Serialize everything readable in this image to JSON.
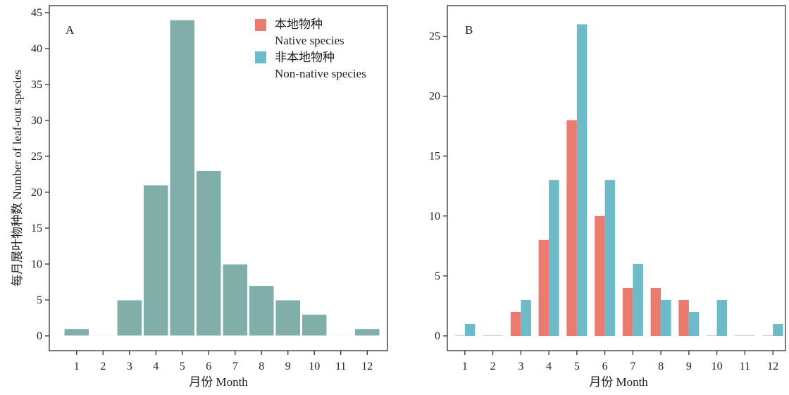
{
  "colors": {
    "single": "#7fafa8",
    "native": "#e97b6f",
    "nonnative": "#6dbac8",
    "axis": "#222222",
    "bar_edge": "#ffffff"
  },
  "chart_data": [
    {
      "type": "bar",
      "panel_label": "A",
      "categories": [
        "1",
        "2",
        "3",
        "4",
        "5",
        "6",
        "7",
        "8",
        "9",
        "10",
        "11",
        "12"
      ],
      "values": [
        1,
        0,
        5,
        21,
        44,
        23,
        10,
        7,
        5,
        3,
        0,
        1
      ],
      "ylim": [
        0,
        45
      ],
      "yticks": [
        0,
        5,
        10,
        15,
        20,
        25,
        30,
        35,
        40,
        45
      ],
      "xlabel": "月份 Month",
      "ylabel": "每月展叶物种数 Number of leaf-out species",
      "grid": false,
      "legend": {
        "position": "top-right",
        "entries": [
          {
            "label_zh": "本地物种",
            "label_en": "Native species",
            "color_key": "native"
          },
          {
            "label_zh": "非本地物种",
            "label_en": "Non-native species",
            "color_key": "nonnative"
          }
        ]
      }
    },
    {
      "type": "bar",
      "panel_label": "B",
      "categories": [
        "1",
        "2",
        "3",
        "4",
        "5",
        "6",
        "7",
        "8",
        "9",
        "10",
        "11",
        "12"
      ],
      "series": [
        {
          "name": "本地物种 Native species",
          "color_key": "native",
          "values": [
            0,
            0,
            2,
            8,
            18,
            10,
            4,
            4,
            3,
            0,
            0,
            0
          ]
        },
        {
          "name": "非本地物种 Non-native species",
          "color_key": "nonnative",
          "values": [
            1,
            0,
            3,
            13,
            26,
            13,
            6,
            3,
            2,
            3,
            0,
            1
          ]
        }
      ],
      "ylim": [
        0,
        26.5
      ],
      "yticks": [
        0,
        5,
        10,
        15,
        20,
        25
      ],
      "xlabel": "月份 Month",
      "ylabel": "",
      "grid": false
    }
  ]
}
